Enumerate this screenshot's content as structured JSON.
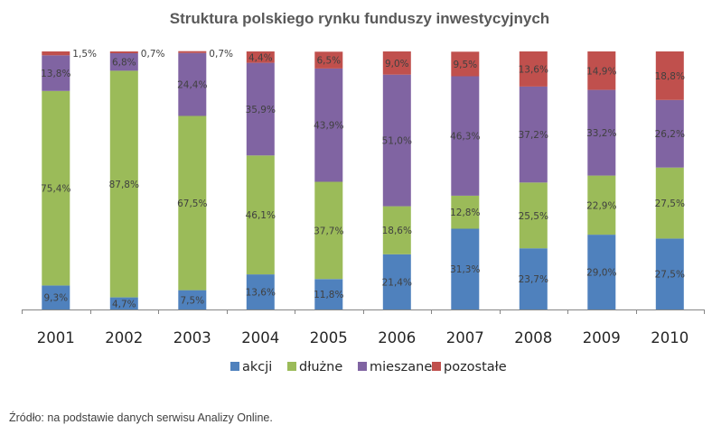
{
  "chart_data": {
    "type": "bar",
    "stacked": "percent",
    "title": "Struktura polskiego rynku funduszy inwestycyjnych",
    "categories": [
      "2001",
      "2002",
      "2003",
      "2004",
      "2005",
      "2006",
      "2007",
      "2008",
      "2009",
      "2010"
    ],
    "series": [
      {
        "name": "akcji",
        "color": "#4f81bd",
        "values": [
          9.3,
          4.7,
          7.5,
          13.6,
          11.8,
          21.4,
          31.3,
          23.7,
          29.0,
          27.5
        ],
        "labels": [
          "9,3%",
          "4,7%",
          "7,5%",
          "13,6%",
          "11,8%",
          "21,4%",
          "31,3%",
          "23,7%",
          "29,0%",
          "27,5%"
        ]
      },
      {
        "name": "dłużne",
        "color": "#9bbb59",
        "values": [
          75.4,
          87.8,
          67.5,
          46.1,
          37.7,
          18.6,
          12.8,
          25.5,
          22.9,
          27.5
        ],
        "labels": [
          "75,4%",
          "87,8%",
          "67,5%",
          "46,1%",
          "37,7%",
          "18,6%",
          "12,8%",
          "25,5%",
          "22,9%",
          "27,5%"
        ]
      },
      {
        "name": "mieszane",
        "color": "#8064a2",
        "values": [
          13.8,
          6.8,
          24.4,
          35.9,
          43.9,
          51.0,
          46.3,
          37.2,
          33.2,
          26.2
        ],
        "labels": [
          "13,8%",
          "6,8%",
          "24,4%",
          "35,9%",
          "43,9%",
          "51,0%",
          "46,3%",
          "37,2%",
          "33,2%",
          "26,2%"
        ]
      },
      {
        "name": "pozostałe",
        "color": "#c0504d",
        "values": [
          1.5,
          0.7,
          0.7,
          4.4,
          6.5,
          9.0,
          9.5,
          13.6,
          14.9,
          18.8
        ],
        "labels": [
          "1,5%",
          "0,7%",
          "0,7%",
          "4,4%",
          "6,5%",
          "9,0%",
          "9,5%",
          "13,6%",
          "14,9%",
          "18,8%"
        ]
      }
    ],
    "ylim": [
      0,
      100
    ],
    "legend": "bottom",
    "grid": false
  },
  "source_note": "Źródło: na podstawie danych serwisu Analizy Online."
}
